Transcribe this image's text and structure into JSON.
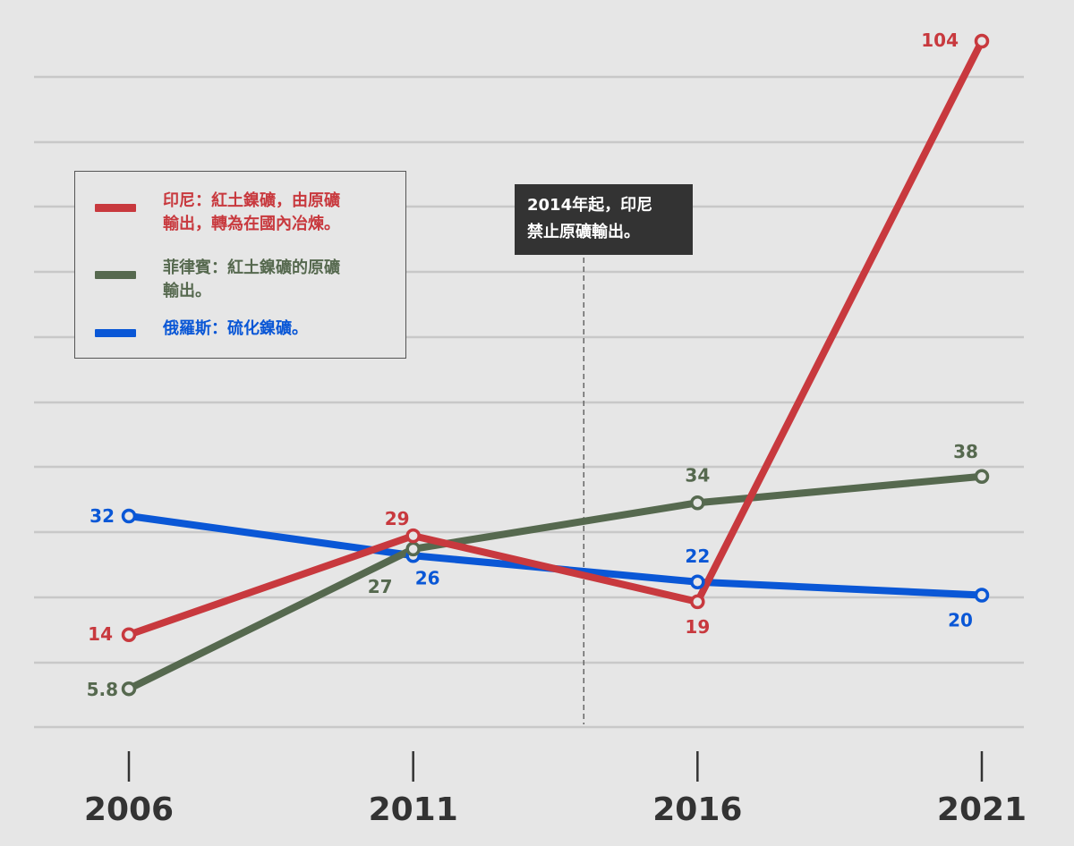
{
  "colors": {
    "background": "#e6e6e6",
    "grid": "#c8c8c8",
    "indonesia": "#c8393e",
    "philippines": "#56694f",
    "russia": "#0a57d6",
    "year_label": "#333333",
    "annotation_bg": "#333333"
  },
  "chart_data": {
    "type": "line",
    "x": [
      2006,
      2011,
      2016,
      2021
    ],
    "x_tick_labels": [
      "2006",
      "2011",
      "2016",
      "2021"
    ],
    "ylim": [
      0,
      104
    ],
    "grid": true,
    "legend_position": "top-left",
    "series": [
      {
        "name": "印尼：紅土鎳礦，由原礦輸出，轉為在國內冶煉。",
        "color": "#c8393e",
        "values": [
          14,
          29,
          19,
          104
        ],
        "labels": [
          "14",
          "29",
          "19",
          "104"
        ]
      },
      {
        "name": "菲律賓：紅土鎳礦的原礦輸出。",
        "color": "#56694f",
        "values": [
          5.8,
          27,
          34,
          38
        ],
        "labels": [
          "5.8",
          "27",
          "34",
          "38"
        ]
      },
      {
        "name": "俄羅斯：硫化鎳礦。",
        "color": "#0a57d6",
        "values": [
          32,
          26,
          22,
          20
        ],
        "labels": [
          "32",
          "26",
          "22",
          "20"
        ]
      }
    ],
    "annotation": {
      "x": 2014,
      "lines": [
        "2014年起，印尼",
        "禁止原礦輸出。"
      ]
    }
  },
  "legend": {
    "items": [
      {
        "lines": [
          "印尼：紅土鎳礦，由原礦",
          "輸出，轉為在國內冶煉。"
        ]
      },
      {
        "lines": [
          "菲律賓：紅土鎳礦的原礦",
          "輸出。"
        ]
      },
      {
        "lines": [
          "俄羅斯：硫化鎳礦。"
        ]
      }
    ]
  }
}
